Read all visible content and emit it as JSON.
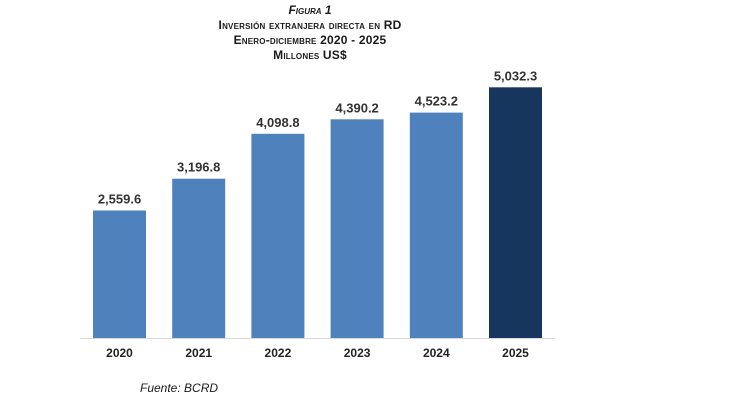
{
  "figure_label": "Figura 1",
  "title_lines": [
    "Inversión extranjera directa en RD",
    "Enero-diciembre 2020 - 2025",
    "Millones US$"
  ],
  "source": "Fuente: BCRD",
  "colors": {
    "bar": "#4f81bd",
    "highlight_bar": "#17365d",
    "axis": "#d9d9d9"
  },
  "chart_data": {
    "type": "bar",
    "title": "Inversión extranjera directa en RD",
    "categories": [
      "2020",
      "2021",
      "2022",
      "2023",
      "2024",
      "2025"
    ],
    "values": [
      2559.6,
      3196.8,
      4098.8,
      4390.2,
      4523.2,
      5032.3
    ],
    "value_labels": [
      "2,559.6",
      "3,196.8",
      "4,098.8",
      "4,390.2",
      "4,523.2",
      "5,032.3"
    ],
    "highlight_index": 5,
    "xlabel": "",
    "ylabel": "",
    "ylim": [
      0,
      5600
    ],
    "grid": false,
    "legend": "none"
  }
}
